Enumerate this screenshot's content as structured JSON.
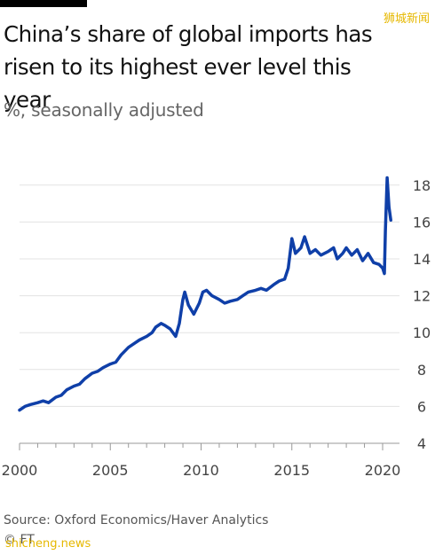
{
  "title": "China’s share of global imports has risen to its highest ever level this year",
  "subtitle": "%, seasonally adjusted",
  "source": "Source: Oxford Economics/Haver Analytics",
  "copyright": "© FT",
  "watermark_top": "狮城新闻",
  "watermark_bottom": "shicheng.news",
  "colors": {
    "line": "#0f3fa8",
    "grid": "#e3e3e3",
    "axis": "#999999"
  },
  "chart_data": {
    "type": "line",
    "title": "China’s share of global imports has risen to its highest ever level this year",
    "ylabel": "%, seasonally adjusted",
    "xlabel": "",
    "xlim": [
      2000,
      2020.8
    ],
    "ylim": [
      4,
      19
    ],
    "xticks": [
      2000,
      2005,
      2010,
      2015,
      2020
    ],
    "yticks": [
      4,
      6,
      8,
      10,
      12,
      14,
      16,
      18
    ],
    "y_axis_position": "right",
    "grid": "horizontal",
    "series": [
      {
        "points": [
          [
            2000.0,
            5.8
          ],
          [
            2000.3,
            6.0
          ],
          [
            2000.6,
            6.1
          ],
          [
            2001.0,
            6.2
          ],
          [
            2001.3,
            6.3
          ],
          [
            2001.6,
            6.2
          ],
          [
            2002.0,
            6.5
          ],
          [
            2002.3,
            6.6
          ],
          [
            2002.6,
            6.9
          ],
          [
            2003.0,
            7.1
          ],
          [
            2003.3,
            7.2
          ],
          [
            2003.6,
            7.5
          ],
          [
            2004.0,
            7.8
          ],
          [
            2004.3,
            7.9
          ],
          [
            2004.6,
            8.1
          ],
          [
            2005.0,
            8.3
          ],
          [
            2005.3,
            8.4
          ],
          [
            2005.6,
            8.8
          ],
          [
            2006.0,
            9.2
          ],
          [
            2006.3,
            9.4
          ],
          [
            2006.6,
            9.6
          ],
          [
            2007.0,
            9.8
          ],
          [
            2007.3,
            10.0
          ],
          [
            2007.5,
            10.3
          ],
          [
            2007.8,
            10.5
          ],
          [
            2008.0,
            10.4
          ],
          [
            2008.3,
            10.2
          ],
          [
            2008.6,
            9.8
          ],
          [
            2008.8,
            10.5
          ],
          [
            2009.0,
            11.8
          ],
          [
            2009.1,
            12.2
          ],
          [
            2009.3,
            11.5
          ],
          [
            2009.6,
            11.0
          ],
          [
            2009.9,
            11.6
          ],
          [
            2010.1,
            12.2
          ],
          [
            2010.3,
            12.3
          ],
          [
            2010.6,
            12.0
          ],
          [
            2011.0,
            11.8
          ],
          [
            2011.3,
            11.6
          ],
          [
            2011.6,
            11.7
          ],
          [
            2012.0,
            11.8
          ],
          [
            2012.3,
            12.0
          ],
          [
            2012.6,
            12.2
          ],
          [
            2013.0,
            12.3
          ],
          [
            2013.3,
            12.4
          ],
          [
            2013.6,
            12.3
          ],
          [
            2014.0,
            12.6
          ],
          [
            2014.3,
            12.8
          ],
          [
            2014.6,
            12.9
          ],
          [
            2014.8,
            13.5
          ],
          [
            2015.0,
            15.1
          ],
          [
            2015.2,
            14.3
          ],
          [
            2015.5,
            14.6
          ],
          [
            2015.7,
            15.2
          ],
          [
            2016.0,
            14.3
          ],
          [
            2016.3,
            14.5
          ],
          [
            2016.6,
            14.2
          ],
          [
            2017.0,
            14.4
          ],
          [
            2017.3,
            14.6
          ],
          [
            2017.5,
            14.0
          ],
          [
            2017.8,
            14.3
          ],
          [
            2018.0,
            14.6
          ],
          [
            2018.3,
            14.2
          ],
          [
            2018.6,
            14.5
          ],
          [
            2018.9,
            13.9
          ],
          [
            2019.2,
            14.3
          ],
          [
            2019.5,
            13.8
          ],
          [
            2019.8,
            13.7
          ],
          [
            2020.0,
            13.5
          ],
          [
            2020.1,
            13.2
          ],
          [
            2020.15,
            15.5
          ],
          [
            2020.25,
            18.4
          ],
          [
            2020.35,
            16.8
          ],
          [
            2020.45,
            16.1
          ]
        ]
      }
    ]
  }
}
